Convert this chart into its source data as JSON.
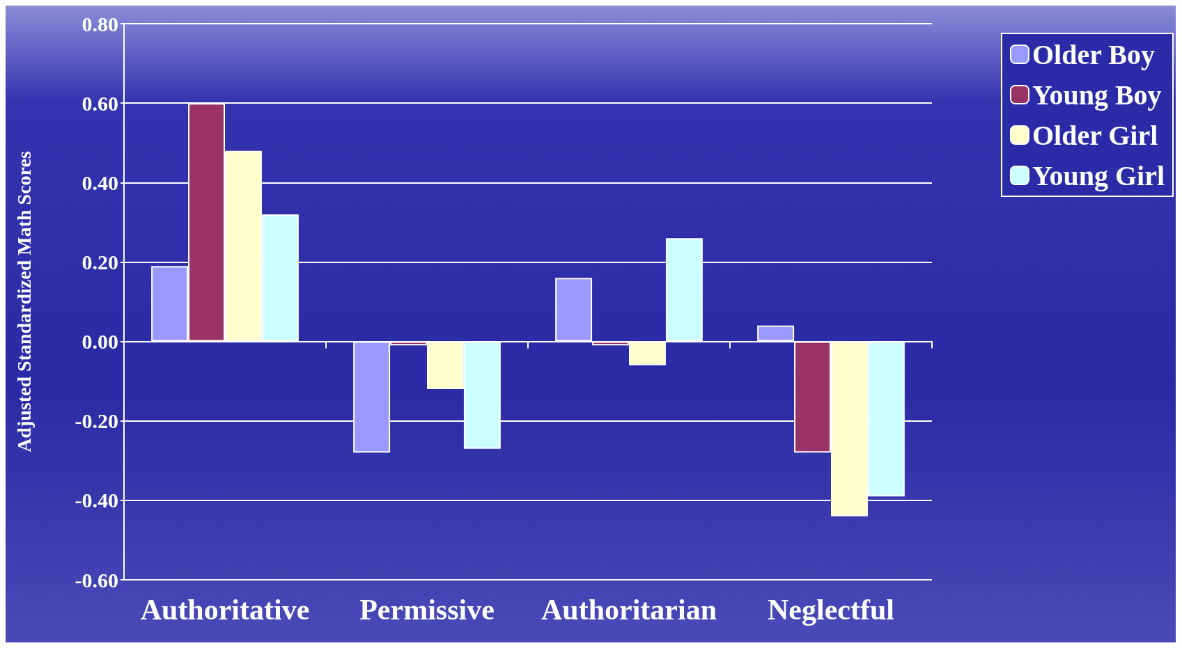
{
  "chart_data": {
    "type": "bar",
    "ylabel": "Adjusted Standardized Math Scores",
    "categories": [
      "Authoritative",
      "Permissive",
      "Authoritarian",
      "Neglectful"
    ],
    "series": [
      {
        "name": "Older Boy",
        "color": "#9999ff",
        "values": [
          0.19,
          -0.28,
          0.16,
          0.04
        ]
      },
      {
        "name": "Young Boy",
        "color": "#993366",
        "values": [
          0.6,
          -0.01,
          -0.01,
          -0.28
        ]
      },
      {
        "name": "Older Girl",
        "color": "#ffffcc",
        "values": [
          0.48,
          -0.12,
          -0.06,
          -0.44
        ]
      },
      {
        "name": "Young Girl",
        "color": "#ccffff",
        "values": [
          0.32,
          -0.27,
          0.26,
          -0.39
        ]
      }
    ],
    "ylim": [
      -0.6,
      0.8
    ],
    "yticks": [
      {
        "value": -0.6,
        "label": "-0.60"
      },
      {
        "value": -0.4,
        "label": "-0.40"
      },
      {
        "value": -0.2,
        "label": "-0.20"
      },
      {
        "value": 0,
        "label": "0.00"
      },
      {
        "value": 0.2,
        "label": "0.20"
      },
      {
        "value": 0.4,
        "label": "0.40"
      },
      {
        "value": 0.6,
        "label": "0.60"
      },
      {
        "value": 0.8,
        "label": "0.80"
      }
    ],
    "grid": "y",
    "legend": "top right"
  }
}
